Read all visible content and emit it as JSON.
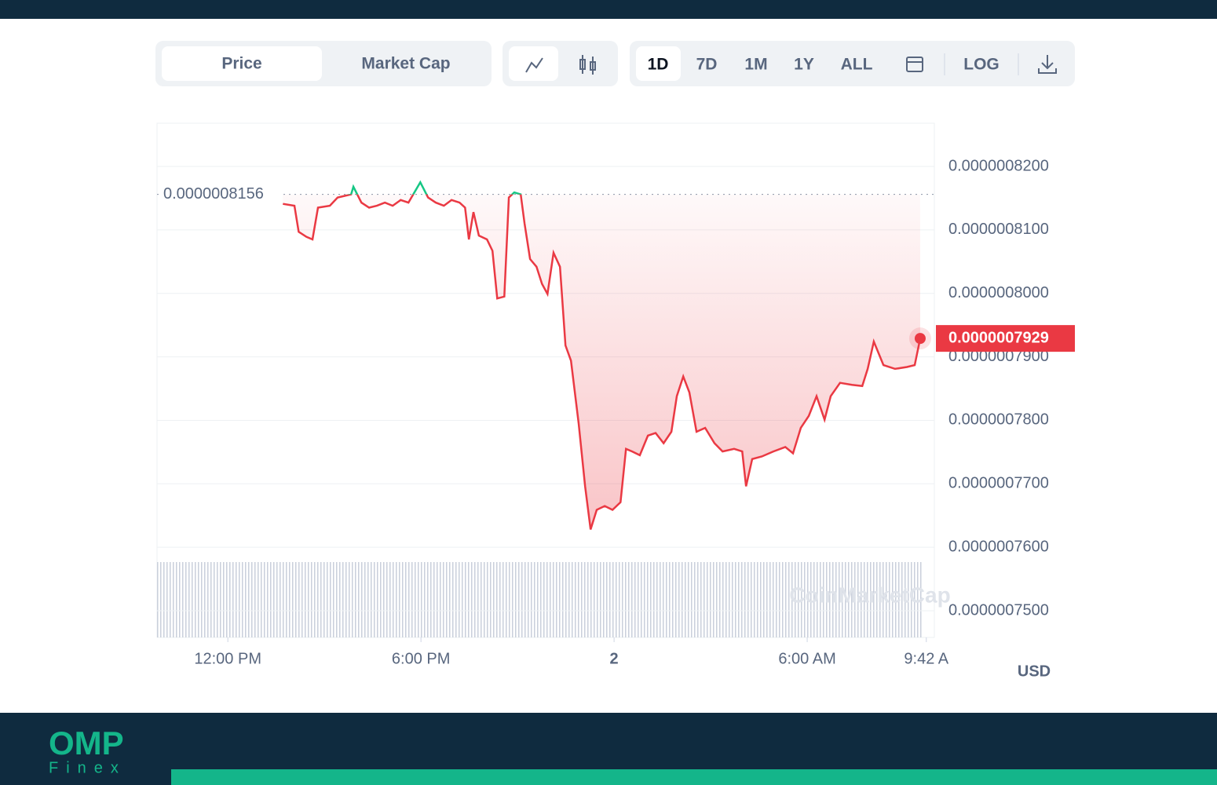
{
  "toolbar": {
    "tabs": [
      "Price",
      "Market Cap"
    ],
    "ranges": [
      "1D",
      "7D",
      "1M",
      "1Y",
      "ALL"
    ],
    "log": "LOG"
  },
  "chart_data": {
    "type": "line",
    "color": "#ea3943",
    "color_above": "#16c784",
    "x": [
      13.71,
      14.07,
      14.2,
      14.44,
      14.63,
      14.8,
      15.17,
      15.41,
      15.83,
      15.9,
      16.15,
      16.39,
      16.63,
      16.88,
      17.12,
      17.37,
      17.61,
      17.98,
      18.22,
      18.46,
      18.71,
      18.95,
      19.2,
      19.37,
      19.49,
      19.63,
      19.8,
      20.05,
      20.22,
      20.37,
      20.59,
      20.73,
      20.9,
      21.1,
      21.22,
      21.39,
      21.59,
      21.76,
      21.93,
      22.12,
      22.32,
      22.49,
      22.66,
      22.9,
      23.1,
      23.27,
      23.46,
      23.71,
      23.95,
      24.2,
      24.37,
      24.56,
      24.8,
      25.05,
      25.29,
      25.54,
      25.78,
      25.95,
      26.15,
      26.34,
      26.56,
      26.83,
      27.12,
      27.37,
      27.73,
      27.98,
      28.1,
      28.29,
      28.59,
      28.95,
      29.32,
      29.56,
      29.8,
      30.05,
      30.29,
      30.54,
      30.73,
      31.02,
      31.39,
      31.71,
      31.88,
      32.07,
      32.37,
      32.73,
      33.1,
      33.34,
      33.51
    ],
    "values": [
      8.141e-07,
      8.138e-07,
      8.097e-07,
      8.089e-07,
      8.085e-07,
      8.135e-07,
      8.138e-07,
      8.151e-07,
      8.156e-07,
      8.168e-07,
      8.143e-07,
      8.135e-07,
      8.138e-07,
      8.143e-07,
      8.138e-07,
      8.147e-07,
      8.143e-07,
      8.175e-07,
      8.151e-07,
      8.143e-07,
      8.138e-07,
      8.147e-07,
      8.143e-07,
      8.135e-07,
      8.085e-07,
      8.128e-07,
      8.091e-07,
      8.085e-07,
      8.067e-07,
      7.992e-07,
      7.995e-07,
      8.151e-07,
      8.159e-07,
      8.156e-07,
      8.11e-07,
      8.054e-07,
      8.042e-07,
      8.015e-07,
      7.999e-07,
      8.064e-07,
      8.042e-07,
      7.918e-07,
      7.894e-07,
      7.795e-07,
      7.696e-07,
      7.628e-07,
      7.659e-07,
      7.665e-07,
      7.659e-07,
      7.671e-07,
      7.755e-07,
      7.751e-07,
      7.745e-07,
      7.776e-07,
      7.78e-07,
      7.764e-07,
      7.782e-07,
      7.838e-07,
      7.869e-07,
      7.844e-07,
      7.782e-07,
      7.788e-07,
      7.764e-07,
      7.751e-07,
      7.755e-07,
      7.751e-07,
      7.696e-07,
      7.739e-07,
      7.743e-07,
      7.751e-07,
      7.758e-07,
      7.748e-07,
      7.788e-07,
      7.807e-07,
      7.838e-07,
      7.801e-07,
      7.838e-07,
      7.859e-07,
      7.856e-07,
      7.854e-07,
      7.881e-07,
      7.924e-07,
      7.887e-07,
      7.881e-07,
      7.884e-07,
      7.887e-07,
      7.929e-07
    ],
    "xlim": [
      9.8,
      33.95
    ],
    "xticks": [
      {
        "value": 12,
        "label": "12:00 PM"
      },
      {
        "value": 18,
        "label": "6:00 PM"
      },
      {
        "value": 24,
        "label": "2"
      },
      {
        "value": 30,
        "label": "6:00 AM"
      },
      {
        "value": 33.7,
        "label": "9:42 A"
      }
    ],
    "ylim": [
      7.458e-07,
      8.268e-07
    ],
    "yticks": [
      {
        "value": 8.2e-07,
        "label": "0.0000008200"
      },
      {
        "value": 8.1e-07,
        "label": "0.0000008100"
      },
      {
        "value": 8e-07,
        "label": "0.0000008000"
      },
      {
        "value": 7.9e-07,
        "label": "0.0000007900"
      },
      {
        "value": 7.8e-07,
        "label": "0.0000007800"
      },
      {
        "value": 7.7e-07,
        "label": "0.0000007700"
      },
      {
        "value": 7.6e-07,
        "label": "0.0000007600"
      },
      {
        "value": 7.5e-07,
        "label": "0.0000007500"
      }
    ],
    "grid": true,
    "reference": {
      "value": 8.156e-07,
      "label": "0.0000008156"
    },
    "last_price": {
      "value": 7.929e-07,
      "label": "0.0000007929"
    },
    "currency": "USD",
    "watermark": "CoinMarketCap"
  },
  "footer": {
    "logo": "OMP",
    "tagline": "Finex"
  }
}
